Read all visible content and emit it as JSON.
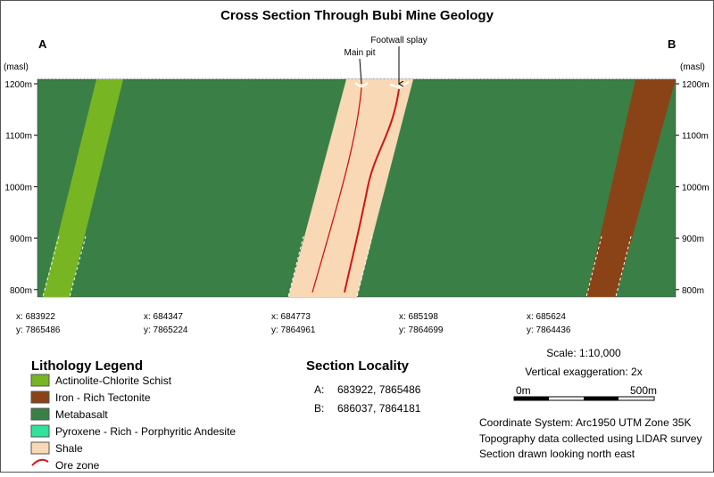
{
  "title": "Cross Section Through Bubi Mine Geology",
  "section_ends": [
    "A",
    "B"
  ],
  "unit_label": "(masl)",
  "elevation_labels": [
    "1200m",
    "1100m",
    "1000m",
    "900m",
    "800m"
  ],
  "annotations": [
    "Main pit",
    "Footwall splay"
  ],
  "coordinates": [
    {
      "x": "x: 683922",
      "y": "y: 7865486"
    },
    {
      "x": "x: 684347",
      "y": "y: 7865224"
    },
    {
      "x": "x: 684773",
      "y": "y: 7864961"
    },
    {
      "x": "x: 685198",
      "y": "y: 7864699"
    },
    {
      "x": "x: 685624",
      "y": "y: 7864436"
    }
  ],
  "legend": {
    "title": "Lithology Legend",
    "items": [
      "Actinolite-Chlorite Schist",
      "Iron - Rich Tectonite",
      "Metabasalt",
      "Pyroxene - Rich - Porphyritic Andesite",
      "Shale",
      "Ore zone"
    ]
  },
  "locality": {
    "title": "Section Locality",
    "rows": [
      [
        "A:",
        "683922, 7865486"
      ],
      [
        "B:",
        "686037, 7864181"
      ]
    ]
  },
  "scale": "Scale: 1:10,000",
  "exaggeration": "Vertical exaggeration: 2x",
  "scale_bar": [
    "0m",
    "500m"
  ],
  "notes": [
    "Coordinate System: Arc1950 UTM Zone 35K",
    "Topography data collected using LIDAR survey",
    "Section drawn looking north east"
  ]
}
